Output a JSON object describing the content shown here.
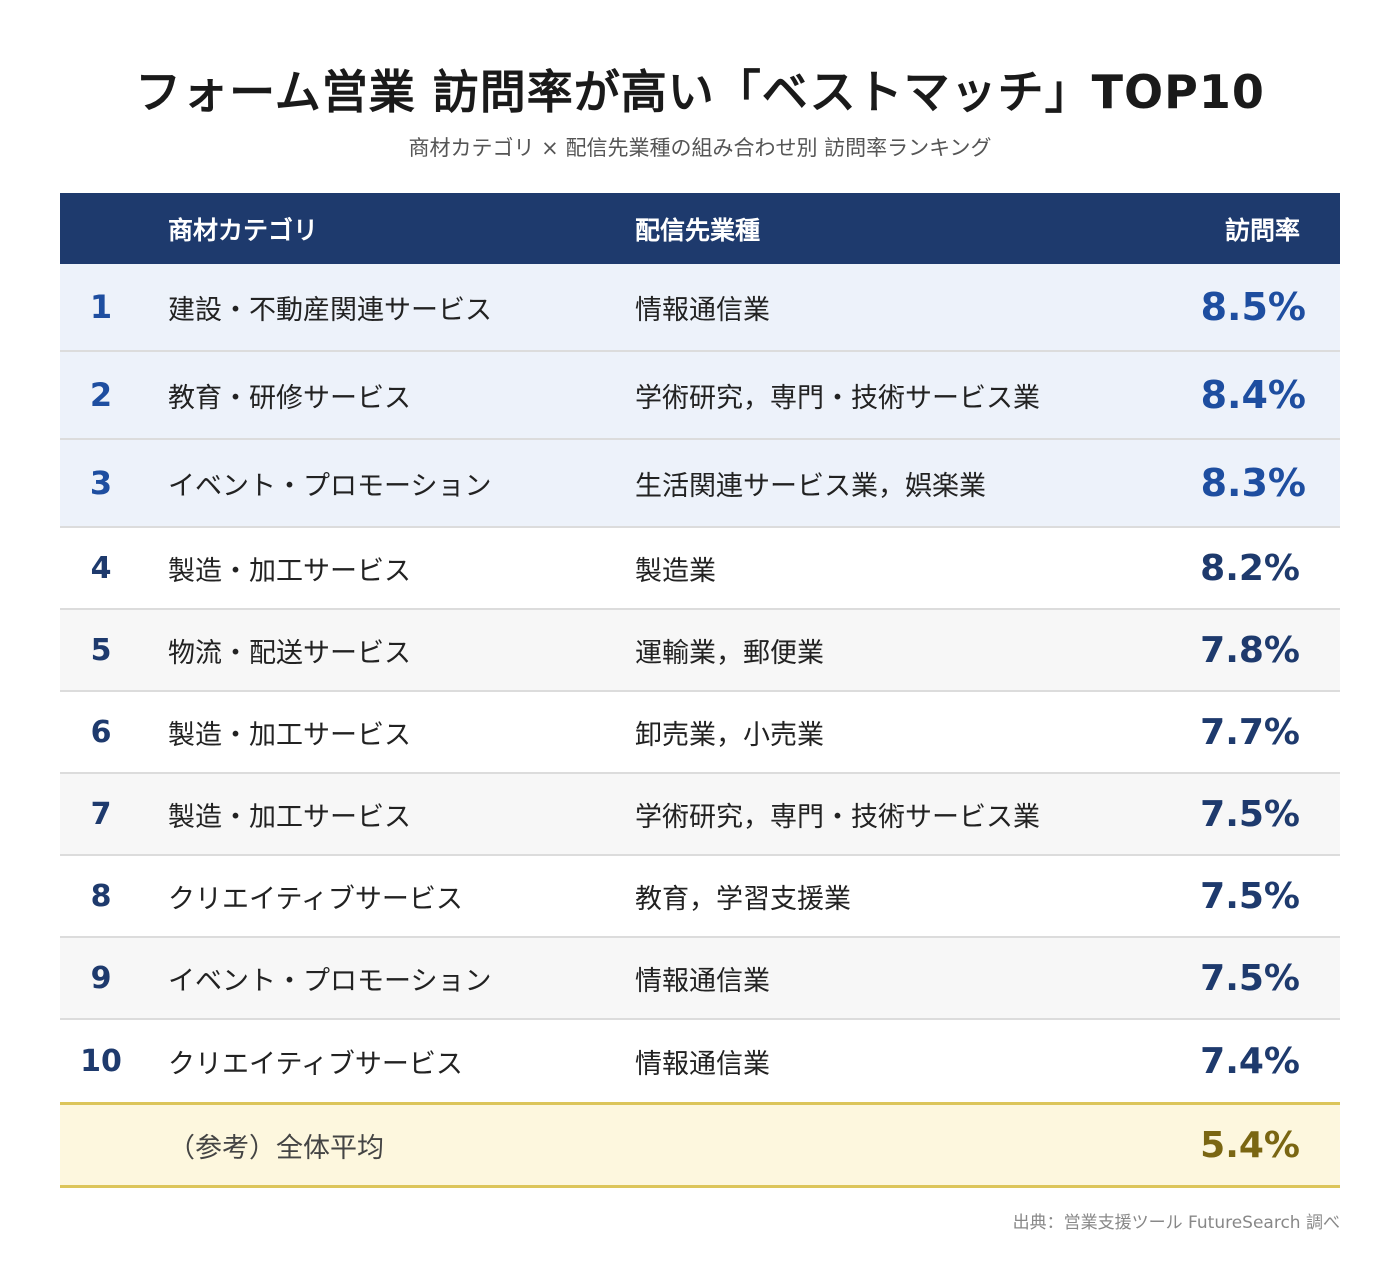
{
  "header": {
    "title": "フォーム営業 訪問率が高い「ベストマッチ」TOP10",
    "subtitle": "商材カテゴリ × 配信先業種の組み合わせ別 訪問率ランキング"
  },
  "chart_data": {
    "type": "table",
    "columns": [
      "",
      "商材カテゴリ",
      "配信先業種",
      "訪問率"
    ],
    "rows": [
      {
        "rank": "1",
        "category": "建設・不動産関連サービス",
        "industry": "情報通信業",
        "rate": "8.5%"
      },
      {
        "rank": "2",
        "category": "教育・研修サービス",
        "industry": "学術研究，専門・技術サービス業",
        "rate": "8.4%"
      },
      {
        "rank": "3",
        "category": "イベント・プロモーション",
        "industry": "生活関連サービス業，娯楽業",
        "rate": "8.3%"
      },
      {
        "rank": "4",
        "category": "製造・加工サービス",
        "industry": "製造業",
        "rate": "8.2%"
      },
      {
        "rank": "5",
        "category": "物流・配送サービス",
        "industry": "運輸業，郵便業",
        "rate": "7.8%"
      },
      {
        "rank": "6",
        "category": "製造・加工サービス",
        "industry": "卸売業，小売業",
        "rate": "7.7%"
      },
      {
        "rank": "7",
        "category": "製造・加工サービス",
        "industry": "学術研究，専門・技術サービス業",
        "rate": "7.5%"
      },
      {
        "rank": "8",
        "category": "クリエイティブサービス",
        "industry": "教育，学習支援業",
        "rate": "7.5%"
      },
      {
        "rank": "9",
        "category": "イベント・プロモーション",
        "industry": "情報通信業",
        "rate": "7.5%"
      },
      {
        "rank": "10",
        "category": "クリエイティブサービス",
        "industry": "情報通信業",
        "rate": "7.4%"
      }
    ],
    "average": {
      "label": "（参考）全体平均",
      "rate": "5.4%"
    }
  },
  "footer": {
    "source": "出典：営業支援ツール FutureSearch 調べ"
  },
  "colors": {
    "header_bg": "#1e3a6d",
    "top3_bg": "#edf2fa",
    "top3_text": "#1e4ea0",
    "avg_bg": "#fdf7de",
    "avg_text": "#7a6612"
  }
}
